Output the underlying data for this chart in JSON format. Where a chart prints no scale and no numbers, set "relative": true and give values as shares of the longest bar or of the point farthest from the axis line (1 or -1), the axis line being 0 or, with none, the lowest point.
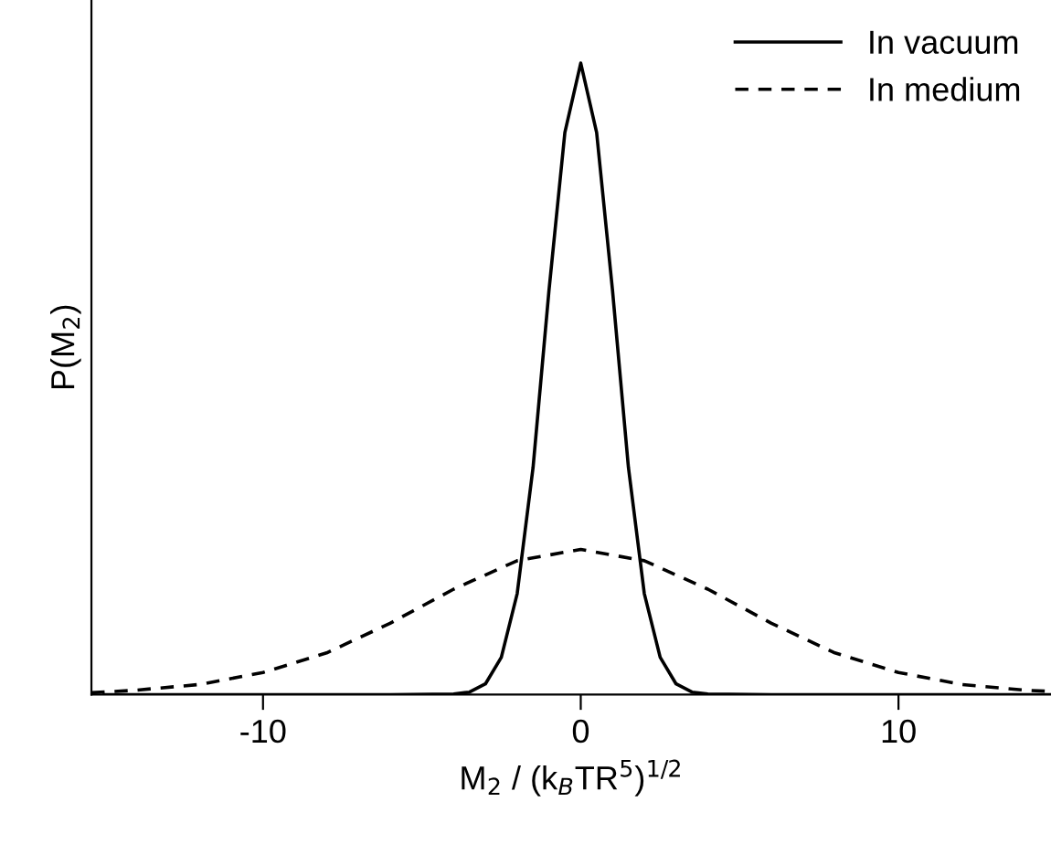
{
  "chart_data": {
    "type": "line",
    "relative": true,
    "xlabel": "M$_{2}$ / (k$_{B}$TR$^{5}$)$^{1/2}$",
    "ylabel": "P(M$_{2}$)",
    "xlim": [
      -15.4,
      14.8
    ],
    "xticks": [
      {
        "value": -10,
        "label": "-10"
      },
      0,
      10
    ],
    "tick_labels": "x",
    "legend": "top right",
    "grid": false,
    "series": [
      {
        "name": "In vacuum",
        "color": "#000000",
        "line_style": "solid",
        "x": [
          -15,
          -6,
          -4,
          -3.5,
          -3,
          -2.5,
          -2,
          -1.5,
          -1,
          -0.5,
          0,
          0.5,
          1,
          1.5,
          2,
          2.5,
          3,
          3.5,
          4,
          6,
          14.8
        ],
        "values": [
          0,
          0,
          0.001,
          0.004,
          0.017,
          0.059,
          0.16,
          0.36,
          0.64,
          0.89,
          1,
          0.89,
          0.64,
          0.36,
          0.16,
          0.059,
          0.017,
          0.004,
          0.001,
          0,
          0
        ]
      },
      {
        "name": "In medium",
        "color": "#000000",
        "line_style": "dashed",
        "x": [
          -15.4,
          -14,
          -12,
          -10,
          -8,
          -6,
          -4,
          -2,
          0,
          2,
          4,
          6,
          8,
          10,
          12,
          14,
          14.8
        ],
        "values": [
          0.003,
          0.007,
          0.016,
          0.035,
          0.066,
          0.113,
          0.167,
          0.212,
          0.23,
          0.212,
          0.167,
          0.113,
          0.066,
          0.035,
          0.016,
          0.007,
          0.005
        ]
      }
    ]
  }
}
